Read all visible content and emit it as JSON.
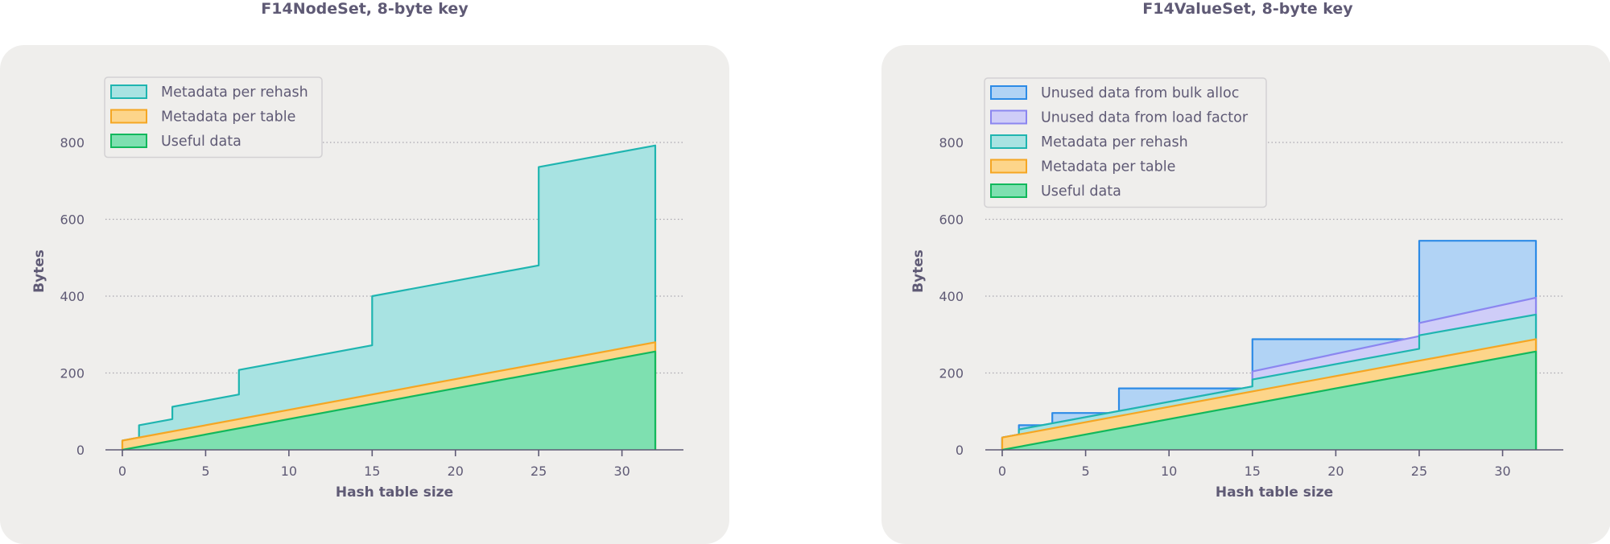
{
  "chart_data": [
    {
      "type": "area",
      "stacked": true,
      "title": "F14NodeSet, 8-byte key",
      "xlabel": "Hash table size",
      "ylabel": "Bytes",
      "xlim": [
        0,
        32
      ],
      "ylim": [
        0,
        950
      ],
      "xticks": [
        "0",
        "5",
        "10",
        "15",
        "20",
        "25",
        "30"
      ],
      "yticks": [
        "0",
        "200",
        "400",
        "600",
        "800"
      ],
      "grid": "horizontal dotted",
      "legend": "top-left",
      "series": [
        {
          "name": "Metadata per rehash",
          "color": "#1fb5b0",
          "fill": "#a8e3e2",
          "x": [
            0,
            1,
            1,
            3,
            3,
            7,
            7,
            15,
            15,
            25,
            25,
            32
          ],
          "top": [
            24,
            32,
            64,
            80,
            112,
            144,
            208,
            272,
            400,
            480,
            736,
            792
          ]
        },
        {
          "name": "Metadata per table",
          "color": "#f5a623",
          "fill": "#fdd58a",
          "x": [
            0,
            32
          ],
          "top": [
            24,
            280
          ]
        },
        {
          "name": "Useful data",
          "color": "#12b85c",
          "fill": "#7ee0b0",
          "x": [
            0,
            32
          ],
          "top": [
            0,
            256
          ]
        }
      ]
    },
    {
      "type": "area",
      "stacked": true,
      "title": "F14ValueSet, 8-byte key",
      "xlabel": "Hash table size",
      "ylabel": "Bytes",
      "xlim": [
        0,
        32
      ],
      "ylim": [
        0,
        950
      ],
      "xticks": [
        "0",
        "5",
        "10",
        "15",
        "20",
        "25",
        "30"
      ],
      "yticks": [
        "0",
        "200",
        "400",
        "600",
        "800"
      ],
      "grid": "horizontal dotted",
      "legend": "top-left",
      "series": [
        {
          "name": "Unused data from bulk alloc",
          "color": "#2d8be6",
          "fill": "#b1d3f5",
          "x": [
            0,
            1,
            1,
            3,
            3,
            7,
            7,
            15,
            15,
            25,
            25,
            32
          ],
          "top": [
            32,
            40,
            64,
            64,
            96,
            96,
            160,
            160,
            288,
            288,
            544,
            544
          ]
        },
        {
          "name": "Unused data from load factor",
          "color": "#8b86f0",
          "fill": "#cfcdf8",
          "x": [
            0,
            1,
            1,
            15,
            15,
            25,
            25,
            32
          ],
          "top": [
            32,
            40,
            53,
            165,
            204,
            296,
            330,
            396
          ]
        },
        {
          "name": "Metadata per rehash",
          "color": "#1fb5b0",
          "fill": "#a8e3e2",
          "x": [
            0,
            1,
            1,
            15,
            15,
            25,
            25,
            32
          ],
          "top": [
            32,
            40,
            53,
            165,
            183,
            263,
            298,
            352
          ]
        },
        {
          "name": "Metadata per table",
          "color": "#f5a623",
          "fill": "#fdd58a",
          "x": [
            0,
            32
          ],
          "top": [
            32,
            288
          ]
        },
        {
          "name": "Useful data",
          "color": "#12b85c",
          "fill": "#7ee0b0",
          "x": [
            0,
            32
          ],
          "top": [
            0,
            256
          ]
        }
      ]
    }
  ]
}
